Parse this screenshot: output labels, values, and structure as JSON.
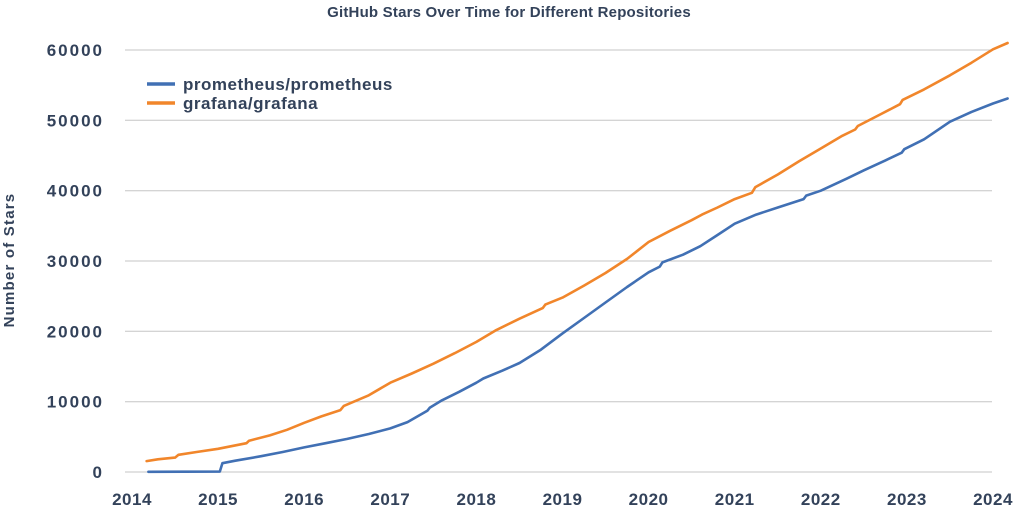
{
  "page": {
    "background": "#ffffff",
    "text_color": "#33425a"
  },
  "chart_data": {
    "type": "line",
    "title": "GitHub Stars Over Time for Different Repositories",
    "xlabel": "",
    "ylabel": "Number of Stars",
    "grid": {
      "horizontal": true,
      "vertical": false,
      "color": "#c6c6c6"
    },
    "legend_position": "top-left-inside",
    "x_axis": {
      "tick_values": [
        2014,
        2015,
        2016,
        2017,
        2018,
        2019,
        2020,
        2021,
        2022,
        2023,
        2024
      ],
      "tick_labels": [
        "2014",
        "2015",
        "2016",
        "2017",
        "2018",
        "2019",
        "2020",
        "2021",
        "2022",
        "2023",
        "2024"
      ],
      "range": [
        2013.75,
        2024.25
      ]
    },
    "y_axis": {
      "tick_values": [
        0,
        10000,
        20000,
        30000,
        40000,
        50000,
        60000
      ],
      "tick_labels": [
        "0",
        "10000",
        "20000",
        "30000",
        "40000",
        "50000",
        "60000"
      ],
      "range": [
        0,
        60000
      ]
    },
    "series": [
      {
        "name": "prometheus/prometheus",
        "color": "#4170b4",
        "points": [
          [
            2014.19,
            30
          ],
          [
            2014.6,
            40
          ],
          [
            2015.02,
            60
          ],
          [
            2015.05,
            1250
          ],
          [
            2015.2,
            1600
          ],
          [
            2015.5,
            2250
          ],
          [
            2015.75,
            2850
          ],
          [
            2016.0,
            3500
          ],
          [
            2016.25,
            4100
          ],
          [
            2016.5,
            4700
          ],
          [
            2016.75,
            5400
          ],
          [
            2017.0,
            6200
          ],
          [
            2017.2,
            7100
          ],
          [
            2017.43,
            8700
          ],
          [
            2017.46,
            9150
          ],
          [
            2017.6,
            10200
          ],
          [
            2017.8,
            11400
          ],
          [
            2018.0,
            12700
          ],
          [
            2018.08,
            13300
          ],
          [
            2018.3,
            14400
          ],
          [
            2018.5,
            15500
          ],
          [
            2018.75,
            17400
          ],
          [
            2019.0,
            19700
          ],
          [
            2019.25,
            21900
          ],
          [
            2019.5,
            24100
          ],
          [
            2019.75,
            26300
          ],
          [
            2020.0,
            28400
          ],
          [
            2020.13,
            29200
          ],
          [
            2020.16,
            29800
          ],
          [
            2020.4,
            30900
          ],
          [
            2020.6,
            32100
          ],
          [
            2020.8,
            33700
          ],
          [
            2021.0,
            35300
          ],
          [
            2021.25,
            36600
          ],
          [
            2021.5,
            37600
          ],
          [
            2021.8,
            38800
          ],
          [
            2021.83,
            39300
          ],
          [
            2022.0,
            40000
          ],
          [
            2022.3,
            41700
          ],
          [
            2022.5,
            42900
          ],
          [
            2022.75,
            44300
          ],
          [
            2022.94,
            45400
          ],
          [
            2022.97,
            45900
          ],
          [
            2023.2,
            47300
          ],
          [
            2023.5,
            49800
          ],
          [
            2023.75,
            51200
          ],
          [
            2024.0,
            52400
          ],
          [
            2024.17,
            53100
          ]
        ]
      },
      {
        "name": "grafana/grafana",
        "color": "#f1862b",
        "points": [
          [
            2014.17,
            1550
          ],
          [
            2014.3,
            1800
          ],
          [
            2014.5,
            2050
          ],
          [
            2014.54,
            2450
          ],
          [
            2014.75,
            2850
          ],
          [
            2015.0,
            3300
          ],
          [
            2015.33,
            4100
          ],
          [
            2015.36,
            4450
          ],
          [
            2015.6,
            5200
          ],
          [
            2015.8,
            6000
          ],
          [
            2016.0,
            7000
          ],
          [
            2016.2,
            7900
          ],
          [
            2016.42,
            8800
          ],
          [
            2016.46,
            9400
          ],
          [
            2016.75,
            10900
          ],
          [
            2017.0,
            12700
          ],
          [
            2017.25,
            14000
          ],
          [
            2017.5,
            15400
          ],
          [
            2017.75,
            16900
          ],
          [
            2018.0,
            18500
          ],
          [
            2018.22,
            20100
          ],
          [
            2018.5,
            21800
          ],
          [
            2018.77,
            23300
          ],
          [
            2018.8,
            23800
          ],
          [
            2019.0,
            24800
          ],
          [
            2019.25,
            26500
          ],
          [
            2019.5,
            28300
          ],
          [
            2019.75,
            30300
          ],
          [
            2020.0,
            32700
          ],
          [
            2020.25,
            34300
          ],
          [
            2020.5,
            35800
          ],
          [
            2020.62,
            36600
          ],
          [
            2020.8,
            37600
          ],
          [
            2021.0,
            38800
          ],
          [
            2021.2,
            39700
          ],
          [
            2021.24,
            40500
          ],
          [
            2021.5,
            42300
          ],
          [
            2021.75,
            44200
          ],
          [
            2022.0,
            46000
          ],
          [
            2022.25,
            47800
          ],
          [
            2022.4,
            48700
          ],
          [
            2022.43,
            49200
          ],
          [
            2022.7,
            50900
          ],
          [
            2022.92,
            52300
          ],
          [
            2022.95,
            52900
          ],
          [
            2023.2,
            54400
          ],
          [
            2023.5,
            56400
          ],
          [
            2023.75,
            58200
          ],
          [
            2024.0,
            60100
          ],
          [
            2024.17,
            61000
          ]
        ]
      }
    ]
  }
}
